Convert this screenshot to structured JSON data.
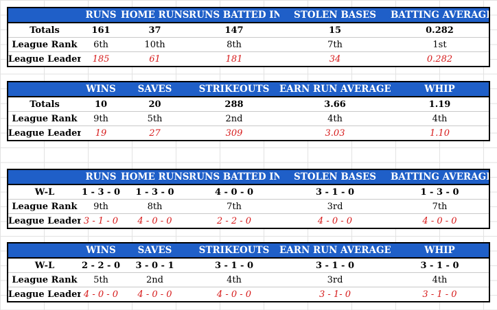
{
  "tables": [
    {
      "headers": [
        "RUNS",
        "HOME RUNS",
        "RUNS BATTED IN",
        "STOLEN BASES",
        "BATTING AVERAGE"
      ],
      "rows": [
        {
          "label": "Totals",
          "values": [
            "161",
            "37",
            "147",
            "15",
            "0.282"
          ]
        },
        {
          "label": "League Rank",
          "values": [
            "6th",
            "10th",
            "8th",
            "7th",
            "1st"
          ]
        },
        {
          "label": "League Leader",
          "values": [
            "185",
            "61",
            "181",
            "34",
            "0.282"
          ]
        }
      ]
    },
    {
      "headers": [
        "WINS",
        "SAVES",
        "STRIKEOUTS",
        "EARN RUN AVERAGE",
        "WHIP"
      ],
      "rows": [
        {
          "label": "Totals",
          "values": [
            "10",
            "20",
            "288",
            "3.66",
            "1.19"
          ]
        },
        {
          "label": "League Rank",
          "values": [
            "9th",
            "5th",
            "2nd",
            "4th",
            "4th"
          ]
        },
        {
          "label": "League Leader",
          "values": [
            "19",
            "27",
            "309",
            "3.03",
            "1.10"
          ]
        }
      ]
    },
    {
      "headers": [
        "RUNS",
        "HOME RUNS",
        "RUNS BATTED IN",
        "STOLEN BASES",
        "BATTING AVERAGE"
      ],
      "rows": [
        {
          "label": "W-L",
          "values": [
            "1 - 3 - 0",
            "1 - 3 - 0",
            "4 - 0 - 0",
            "3 - 1 - 0",
            "1 - 3 - 0"
          ]
        },
        {
          "label": "League Rank",
          "values": [
            "9th",
            "8th",
            "7th",
            "3rd",
            "7th"
          ]
        },
        {
          "label": "League Leader",
          "values": [
            "3 - 1 - 0",
            "4 - 0 - 0",
            "2 - 2 - 0",
            "4 - 0 - 0",
            "4 - 0 - 0"
          ]
        }
      ]
    },
    {
      "headers": [
        "WINS",
        "SAVES",
        "STRIKEOUTS",
        "EARN RUN AVERAGE",
        "WHIP"
      ],
      "rows": [
        {
          "label": "W-L",
          "values": [
            "2 - 2 - 0",
            "3 - 0 - 1",
            "3 - 1 - 0",
            "3 - 1 - 0",
            "3 - 1 - 0"
          ]
        },
        {
          "label": "League Rank",
          "values": [
            "5th",
            "2nd",
            "4th",
            "3rd",
            "4th"
          ]
        },
        {
          "label": "League Leader",
          "values": [
            "4 - 0 - 0",
            "4 - 0 - 0",
            "4 - 0 - 0",
            "3 - 1- 0",
            "3 - 1 - 0"
          ]
        }
      ]
    }
  ],
  "colors": {
    "header_bg": "#1f5fc8",
    "header_text": "#ffffff",
    "leader_text": "#d61a1a"
  }
}
